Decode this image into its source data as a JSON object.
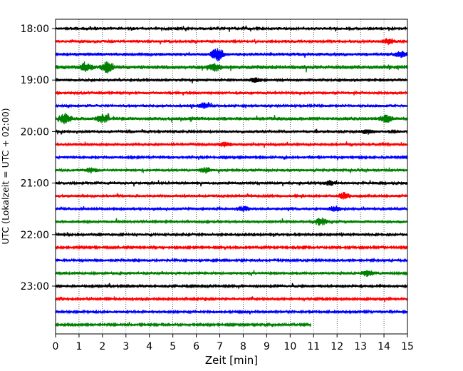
{
  "chart_data": {
    "type": "line",
    "title": "",
    "xlabel": "Zeit  [min]",
    "ylabel": "UTC (Lokalzeit = UTC + 02:00)",
    "xlim": [
      0,
      15
    ],
    "x_ticks": [
      "0",
      "1",
      "2",
      "3",
      "4",
      "5",
      "6",
      "7",
      "8",
      "9",
      "10",
      "11",
      "12",
      "13",
      "14",
      "15"
    ],
    "y_ticks": [
      "18:00",
      "19:00",
      "20:00",
      "21:00",
      "22:00",
      "23:00"
    ],
    "y_tick_times": [
      "18:00",
      "19:00",
      "20:00",
      "21:00",
      "22:00",
      "23:00"
    ],
    "grid": "vertical dotted",
    "trace_interval_min": 15,
    "trace_color_cycle": [
      "#000000",
      "#ff0000",
      "#0000ff",
      "#008000"
    ],
    "series": [
      {
        "start": "18:00",
        "x_end": 15,
        "color": "#000000",
        "amplitude": 1.0,
        "events": []
      },
      {
        "start": "18:15",
        "x_end": 15,
        "color": "#ff0000",
        "amplitude": 1.0,
        "events": [
          {
            "x": 14.2,
            "amp": 1.8
          }
        ]
      },
      {
        "start": "18:30",
        "x_end": 15,
        "color": "#0000ff",
        "amplitude": 1.2,
        "events": [
          {
            "x": 6.9,
            "amp": 3.5
          },
          {
            "x": 14.7,
            "amp": 1.5
          }
        ]
      },
      {
        "start": "18:45",
        "x_end": 15,
        "color": "#008000",
        "amplitude": 1.4,
        "events": [
          {
            "x": 1.3,
            "amp": 2.0
          },
          {
            "x": 2.2,
            "amp": 2.2
          },
          {
            "x": 6.8,
            "amp": 1.3
          }
        ]
      },
      {
        "start": "19:00",
        "x_end": 15,
        "color": "#000000",
        "amplitude": 1.0,
        "events": [
          {
            "x": 8.5,
            "amp": 1.3
          }
        ]
      },
      {
        "start": "19:15",
        "x_end": 15,
        "color": "#ff0000",
        "amplitude": 1.0,
        "events": []
      },
      {
        "start": "19:30",
        "x_end": 15,
        "color": "#0000ff",
        "amplitude": 1.0,
        "events": [
          {
            "x": 6.3,
            "amp": 1.6
          }
        ]
      },
      {
        "start": "19:45",
        "x_end": 15,
        "color": "#008000",
        "amplitude": 1.3,
        "events": [
          {
            "x": 0.4,
            "amp": 2.3
          },
          {
            "x": 2.0,
            "amp": 1.8
          },
          {
            "x": 14.1,
            "amp": 1.7
          }
        ]
      },
      {
        "start": "20:00",
        "x_end": 15,
        "color": "#000000",
        "amplitude": 1.0,
        "events": [
          {
            "x": 13.3,
            "amp": 1.2
          }
        ]
      },
      {
        "start": "20:15",
        "x_end": 15,
        "color": "#ff0000",
        "amplitude": 1.0,
        "events": [
          {
            "x": 7.2,
            "amp": 1.2
          }
        ]
      },
      {
        "start": "20:30",
        "x_end": 15,
        "color": "#0000ff",
        "amplitude": 0.9,
        "events": []
      },
      {
        "start": "20:45",
        "x_end": 15,
        "color": "#008000",
        "amplitude": 1.0,
        "events": [
          {
            "x": 6.4,
            "amp": 1.6
          },
          {
            "x": 1.5,
            "amp": 1.3
          }
        ]
      },
      {
        "start": "21:00",
        "x_end": 15,
        "color": "#000000",
        "amplitude": 1.0,
        "events": [
          {
            "x": 11.7,
            "amp": 1.4
          }
        ]
      },
      {
        "start": "21:15",
        "x_end": 15,
        "color": "#ff0000",
        "amplitude": 1.0,
        "events": [
          {
            "x": 12.3,
            "amp": 1.8
          }
        ]
      },
      {
        "start": "21:30",
        "x_end": 15,
        "color": "#0000ff",
        "amplitude": 1.0,
        "events": [
          {
            "x": 8.0,
            "amp": 1.4
          },
          {
            "x": 11.9,
            "amp": 1.4
          }
        ]
      },
      {
        "start": "21:45",
        "x_end": 15,
        "color": "#008000",
        "amplitude": 1.0,
        "events": [
          {
            "x": 11.3,
            "amp": 2.3
          }
        ]
      },
      {
        "start": "22:00",
        "x_end": 15,
        "color": "#000000",
        "amplitude": 0.9,
        "events": []
      },
      {
        "start": "22:15",
        "x_end": 15,
        "color": "#ff0000",
        "amplitude": 0.8,
        "events": []
      },
      {
        "start": "22:30",
        "x_end": 15,
        "color": "#0000ff",
        "amplitude": 0.9,
        "events": []
      },
      {
        "start": "22:45",
        "x_end": 15,
        "color": "#008000",
        "amplitude": 1.0,
        "events": [
          {
            "x": 13.3,
            "amp": 1.7
          }
        ]
      },
      {
        "start": "23:00",
        "x_end": 15,
        "color": "#000000",
        "amplitude": 0.9,
        "events": []
      },
      {
        "start": "23:15",
        "x_end": 15,
        "color": "#ff0000",
        "amplitude": 0.9,
        "events": []
      },
      {
        "start": "23:30",
        "x_end": 15,
        "color": "#0000ff",
        "amplitude": 0.9,
        "events": []
      },
      {
        "start": "23:45",
        "x_end": 10.9,
        "color": "#008000",
        "amplitude": 0.8,
        "events": []
      }
    ]
  }
}
